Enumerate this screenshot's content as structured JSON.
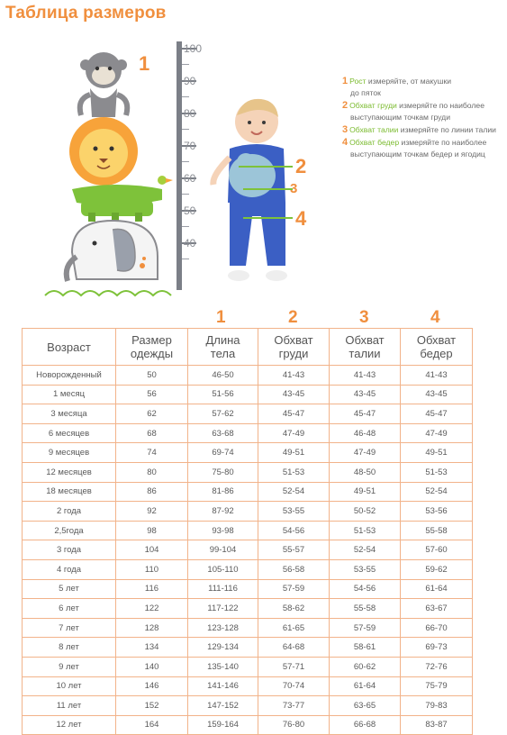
{
  "title": "Таблица размеров",
  "ruler": {
    "labels": [
      "100",
      "90",
      "80",
      "70",
      "60",
      "50",
      "40"
    ]
  },
  "figure_numbers": {
    "monkey": "1",
    "chest": "2",
    "waist": "3",
    "hips": "4"
  },
  "legend": [
    {
      "num": "1",
      "key": "Рост",
      "rest1": " измеряйте, от макушки",
      "rest2": "до пяток"
    },
    {
      "num": "2",
      "key": "Обхват груди",
      "rest1": " измеряйте по наиболее",
      "rest2": "выступающим точкам груди"
    },
    {
      "num": "3",
      "key": "Обхват талии",
      "rest1": " измеряйте по линии талии",
      "rest2": ""
    },
    {
      "num": "4",
      "key": "Обхват бедер",
      "rest1": " измеряйте по наиболее",
      "rest2": "выступающим точкам бедер и ягодиц"
    }
  ],
  "table": {
    "column_numbers": [
      "1",
      "2",
      "3",
      "4"
    ],
    "headers": [
      [
        "Возраст"
      ],
      [
        "Размер",
        "одежды"
      ],
      [
        "Длина",
        "тела"
      ],
      [
        "Обхват",
        "груди"
      ],
      [
        "Обхват",
        "талии"
      ],
      [
        "Обхват",
        "бедер"
      ]
    ],
    "rows": [
      [
        "Новорожденный",
        "50",
        "46-50",
        "41-43",
        "41-43",
        "41-43"
      ],
      [
        "1 месяц",
        "56",
        "51-56",
        "43-45",
        "43-45",
        "43-45"
      ],
      [
        "3 месяца",
        "62",
        "57-62",
        "45-47",
        "45-47",
        "45-47"
      ],
      [
        "6 месяцев",
        "68",
        "63-68",
        "47-49",
        "46-48",
        "47-49"
      ],
      [
        "9 месяцев",
        "74",
        "69-74",
        "49-51",
        "47-49",
        "49-51"
      ],
      [
        "12 месяцев",
        "80",
        "75-80",
        "51-53",
        "48-50",
        "51-53"
      ],
      [
        "18 месяцев",
        "86",
        "81-86",
        "52-54",
        "49-51",
        "52-54"
      ],
      [
        "2 года",
        "92",
        "87-92",
        "53-55",
        "50-52",
        "53-56"
      ],
      [
        "2,5года",
        "98",
        "93-98",
        "54-56",
        "51-53",
        "55-58"
      ],
      [
        "3 года",
        "104",
        "99-104",
        "55-57",
        "52-54",
        "57-60"
      ],
      [
        "4 года",
        "110",
        "105-110",
        "56-58",
        "53-55",
        "59-62"
      ],
      [
        "5 лет",
        "116",
        "111-116",
        "57-59",
        "54-56",
        "61-64"
      ],
      [
        "6 лет",
        "122",
        "117-122",
        "58-62",
        "55-58",
        "63-67"
      ],
      [
        "7 лет",
        "128",
        "123-128",
        "61-65",
        "57-59",
        "66-70"
      ],
      [
        "8 лет",
        "134",
        "129-134",
        "64-68",
        "58-61",
        "69-73"
      ],
      [
        "9 лет",
        "140",
        "135-140",
        "57-71",
        "60-62",
        "72-76"
      ],
      [
        "10 лет",
        "146",
        "141-146",
        "70-74",
        "61-64",
        "75-79"
      ],
      [
        "11 лет",
        "152",
        "147-152",
        "73-77",
        "63-65",
        "79-83"
      ],
      [
        "12 лет",
        "164",
        "159-164",
        "76-80",
        "66-68",
        "83-87"
      ]
    ]
  },
  "colors": {
    "accent": "#f08f3e",
    "legend_key": "#7bbb2f",
    "ruler": "#7b7f87",
    "table_border": "#f2b38a"
  }
}
